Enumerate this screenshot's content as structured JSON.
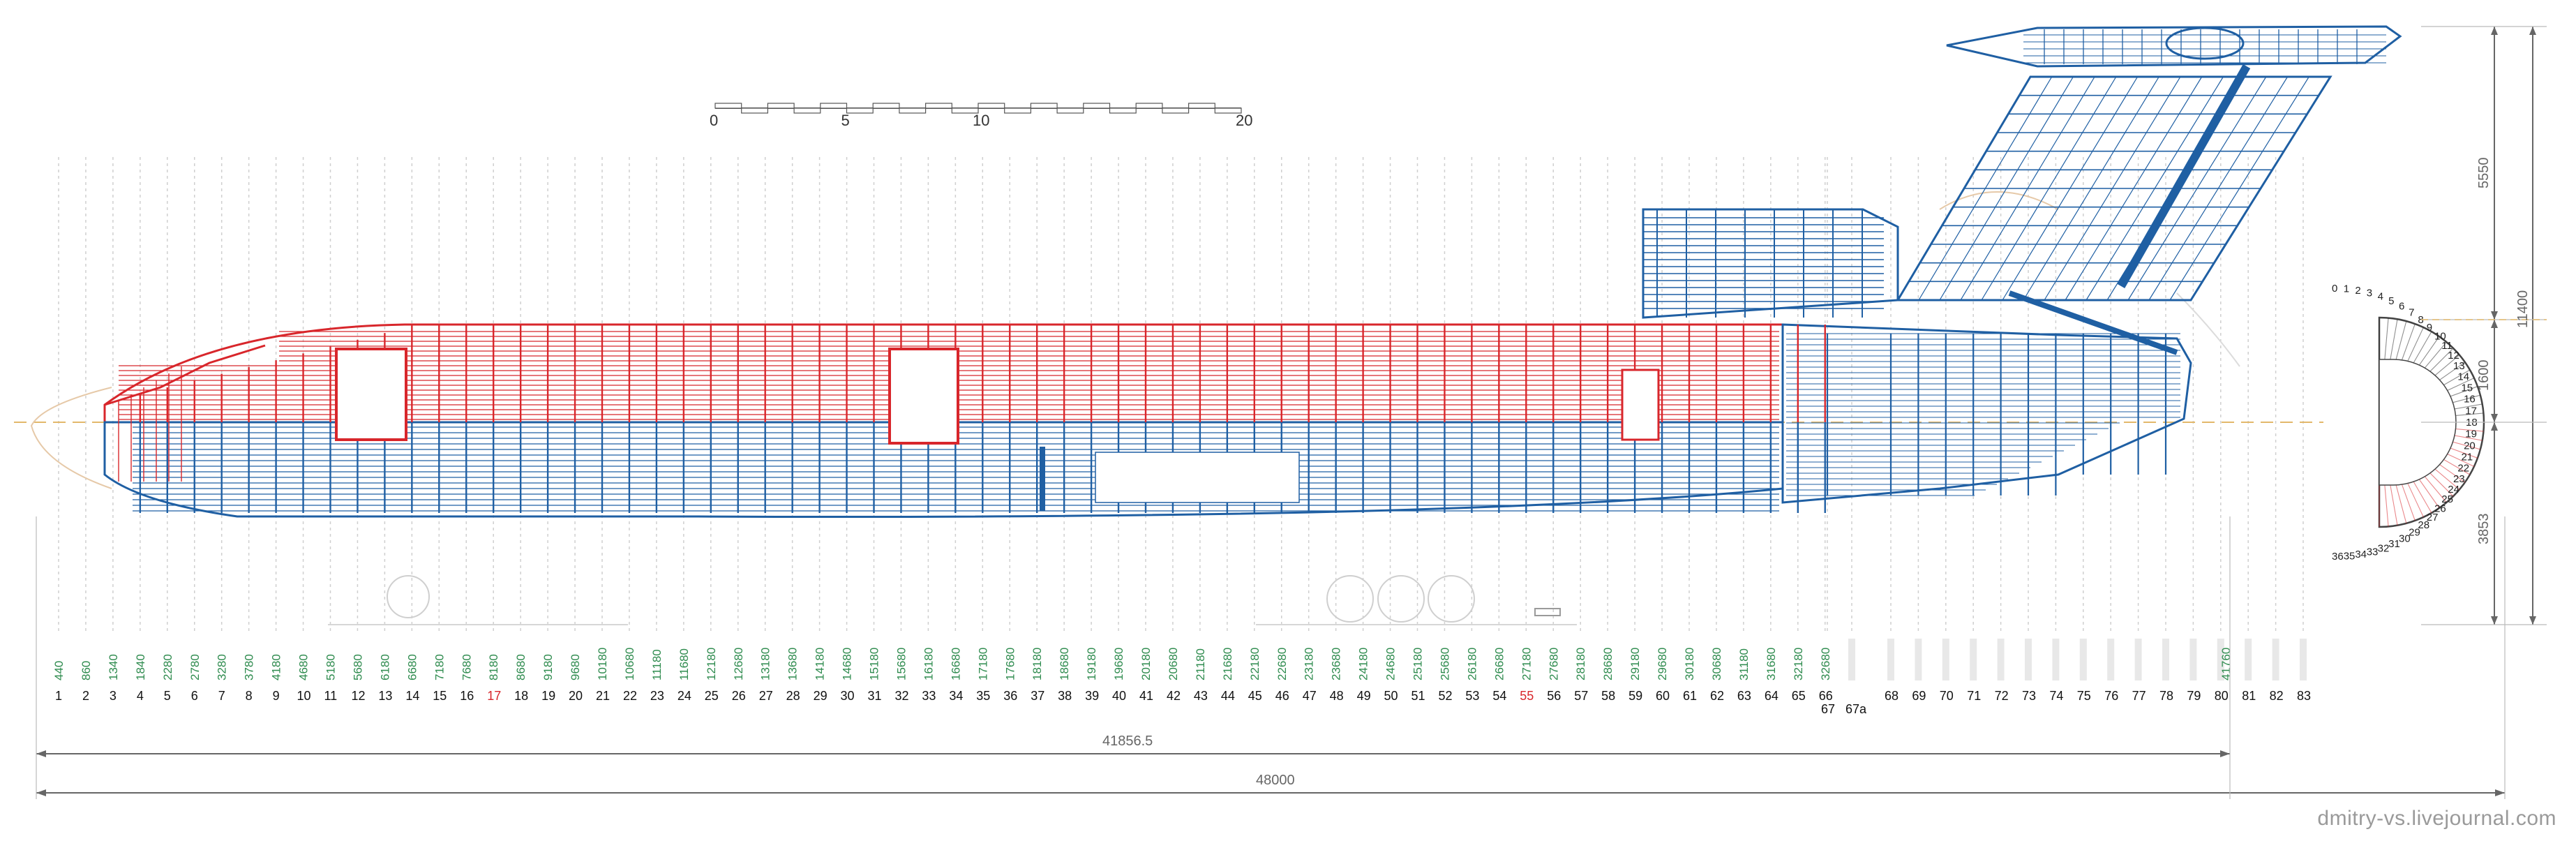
{
  "scale_bar": {
    "labels": [
      "0",
      "5",
      "10",
      "20"
    ],
    "values": [
      0,
      5,
      10,
      20
    ]
  },
  "frame_codes": [
    "440",
    "860",
    "1340",
    "1840",
    "2280",
    "2780",
    "3280",
    "3780",
    "4180",
    "4680",
    "5180",
    "5680",
    "6180",
    "6680",
    "7180",
    "7680",
    "8180",
    "8680",
    "9180",
    "9680",
    "10180",
    "10680",
    "11180",
    "11680",
    "12180",
    "12680",
    "13180",
    "13680",
    "14180",
    "14680",
    "15180",
    "15680",
    "16180",
    "16680",
    "17180",
    "17680",
    "18180",
    "18680",
    "19180",
    "19680",
    "20180",
    "20680",
    "21180",
    "21680",
    "22180",
    "22680",
    "23180",
    "23680",
    "24180",
    "24680",
    "25180",
    "25680",
    "26180",
    "26680",
    "27180",
    "27680",
    "28180",
    "28680",
    "29180",
    "29680",
    "30180",
    "30680",
    "31180",
    "31680",
    "32180",
    "32680"
  ],
  "frame_code_end": "41760",
  "frame_numbers": [
    "1",
    "2",
    "3",
    "4",
    "5",
    "6",
    "7",
    "8",
    "9",
    "10",
    "11",
    "12",
    "13",
    "14",
    "15",
    "16",
    "17",
    "18",
    "19",
    "20",
    "21",
    "22",
    "23",
    "24",
    "25",
    "26",
    "27",
    "28",
    "29",
    "30",
    "31",
    "32",
    "33",
    "34",
    "35",
    "36",
    "37",
    "38",
    "39",
    "40",
    "41",
    "42",
    "43",
    "44",
    "45",
    "46",
    "47",
    "48",
    "49",
    "50",
    "51",
    "52",
    "53",
    "54",
    "55",
    "56",
    "57",
    "58",
    "59",
    "60",
    "61",
    "62",
    "63",
    "64",
    "65",
    "66",
    "67",
    "67a",
    "68",
    "69",
    "70",
    "71",
    "72",
    "73",
    "74",
    "75",
    "76",
    "77",
    "78",
    "79",
    "80",
    "81",
    "82",
    "83"
  ],
  "highlight_frames": [
    "17",
    "55"
  ],
  "colors": {
    "upper_structure": "#d8262b",
    "lower_structure": "#1f5fa3",
    "frame_code": "#2e8b4e",
    "highlight": "#d8262b",
    "dimension": "#666666"
  },
  "dimensions": {
    "fuselage_length": "41856.5",
    "total_length": "48000",
    "height_total": "11400",
    "height_fin": "5550",
    "height_mid": "1600",
    "height_lower": "3853"
  },
  "section_frames": [
    "0",
    "1",
    "2",
    "3",
    "4",
    "5",
    "6",
    "7",
    "8",
    "9",
    "10",
    "11",
    "12",
    "13",
    "14",
    "15",
    "16",
    "17",
    "18",
    "19",
    "20",
    "21",
    "22",
    "23",
    "24",
    "25",
    "26",
    "27",
    "28",
    "29",
    "30",
    "31",
    "32",
    "33",
    "34",
    "35",
    "36"
  ],
  "credit": "dmitry-vs.livejournal.com"
}
